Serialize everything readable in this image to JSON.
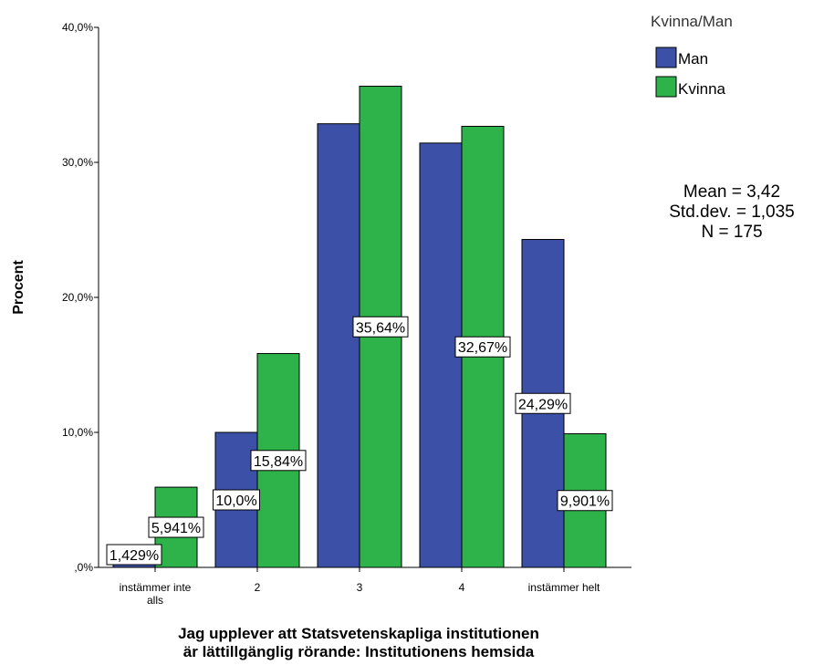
{
  "chart_data": {
    "type": "bar",
    "categories": [
      "instämmer inte alls",
      "2",
      "3",
      "4",
      "instämmer helt"
    ],
    "category_labels": [
      [
        "instämmer inte",
        "alls"
      ],
      [
        "2"
      ],
      [
        "3"
      ],
      [
        "4"
      ],
      [
        "instämmer helt"
      ]
    ],
    "series": [
      {
        "name": "Man",
        "color": "#3c50a8",
        "values": [
          1.429,
          10.0,
          32.86,
          31.43,
          24.29
        ],
        "labels": [
          "1,429%",
          "10,0%",
          "",
          "",
          "24,29%"
        ]
      },
      {
        "name": "Kvinna",
        "color": "#2db34a",
        "values": [
          5.941,
          15.84,
          35.64,
          32.67,
          9.901
        ],
        "labels": [
          "5,941%",
          "15,84%",
          "35,64%",
          "32,67%",
          "9,901%"
        ]
      }
    ],
    "ylabel": "Procent",
    "xlabel_lines": [
      "Jag upplever att Statsvetenskapliga institutionen",
      "är lättillgänglig rörande: Institutionens hemsida"
    ],
    "ylim": [
      0,
      40
    ],
    "yticks": [
      {
        "value": 0,
        "label": ",0%"
      },
      {
        "value": 10,
        "label": "10,0%"
      },
      {
        "value": 20,
        "label": "20,0%"
      },
      {
        "value": 30,
        "label": "30,0%"
      },
      {
        "value": 40,
        "label": "40,0%"
      }
    ],
    "legend": {
      "title": "Kvinna/Man",
      "placement": "top-right"
    },
    "stats": [
      "Mean = 3,42",
      "Std.dev. = 1,035",
      "N = 175"
    ],
    "grid": false
  }
}
